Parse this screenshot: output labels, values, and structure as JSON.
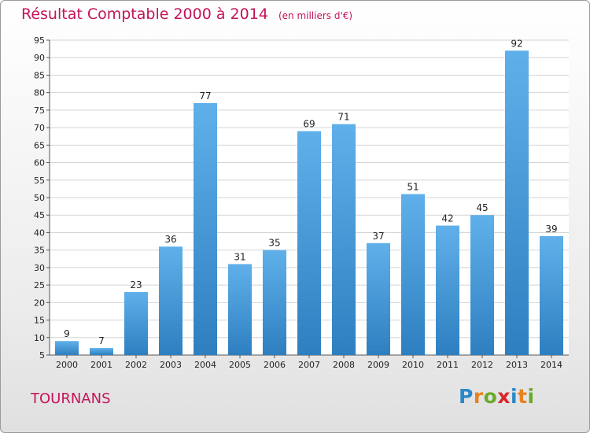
{
  "chart_data": {
    "type": "bar",
    "title": "Résultat Comptable 2000 à 2014",
    "subtitle": "(en milliers d'€)",
    "categories": [
      "2000",
      "2001",
      "2002",
      "2003",
      "2004",
      "2005",
      "2006",
      "2007",
      "2008",
      "2009",
      "2010",
      "2011",
      "2012",
      "2013",
      "2014"
    ],
    "values": [
      9,
      7,
      23,
      36,
      77,
      31,
      35,
      69,
      71,
      37,
      51,
      42,
      45,
      92,
      39
    ],
    "ylim": [
      5,
      95
    ],
    "yticks": [
      5,
      10,
      15,
      20,
      25,
      30,
      35,
      40,
      45,
      50,
      55,
      60,
      65,
      70,
      75,
      80,
      85,
      90,
      95
    ],
    "xlabel": "",
    "ylabel": "",
    "grid": true,
    "bar_color": "#4a9ad8"
  },
  "location": "TOURNANS",
  "brand": {
    "letters": [
      "P",
      "r",
      "o",
      "x",
      "i",
      "t",
      "i"
    ],
    "colors": [
      "#2a88c8",
      "#e8821e",
      "#6aaa2c",
      "#d8262a",
      "#2a88c8",
      "#e8821e",
      "#6aaa2c"
    ]
  },
  "colors": {
    "accent": "#c4145a"
  }
}
